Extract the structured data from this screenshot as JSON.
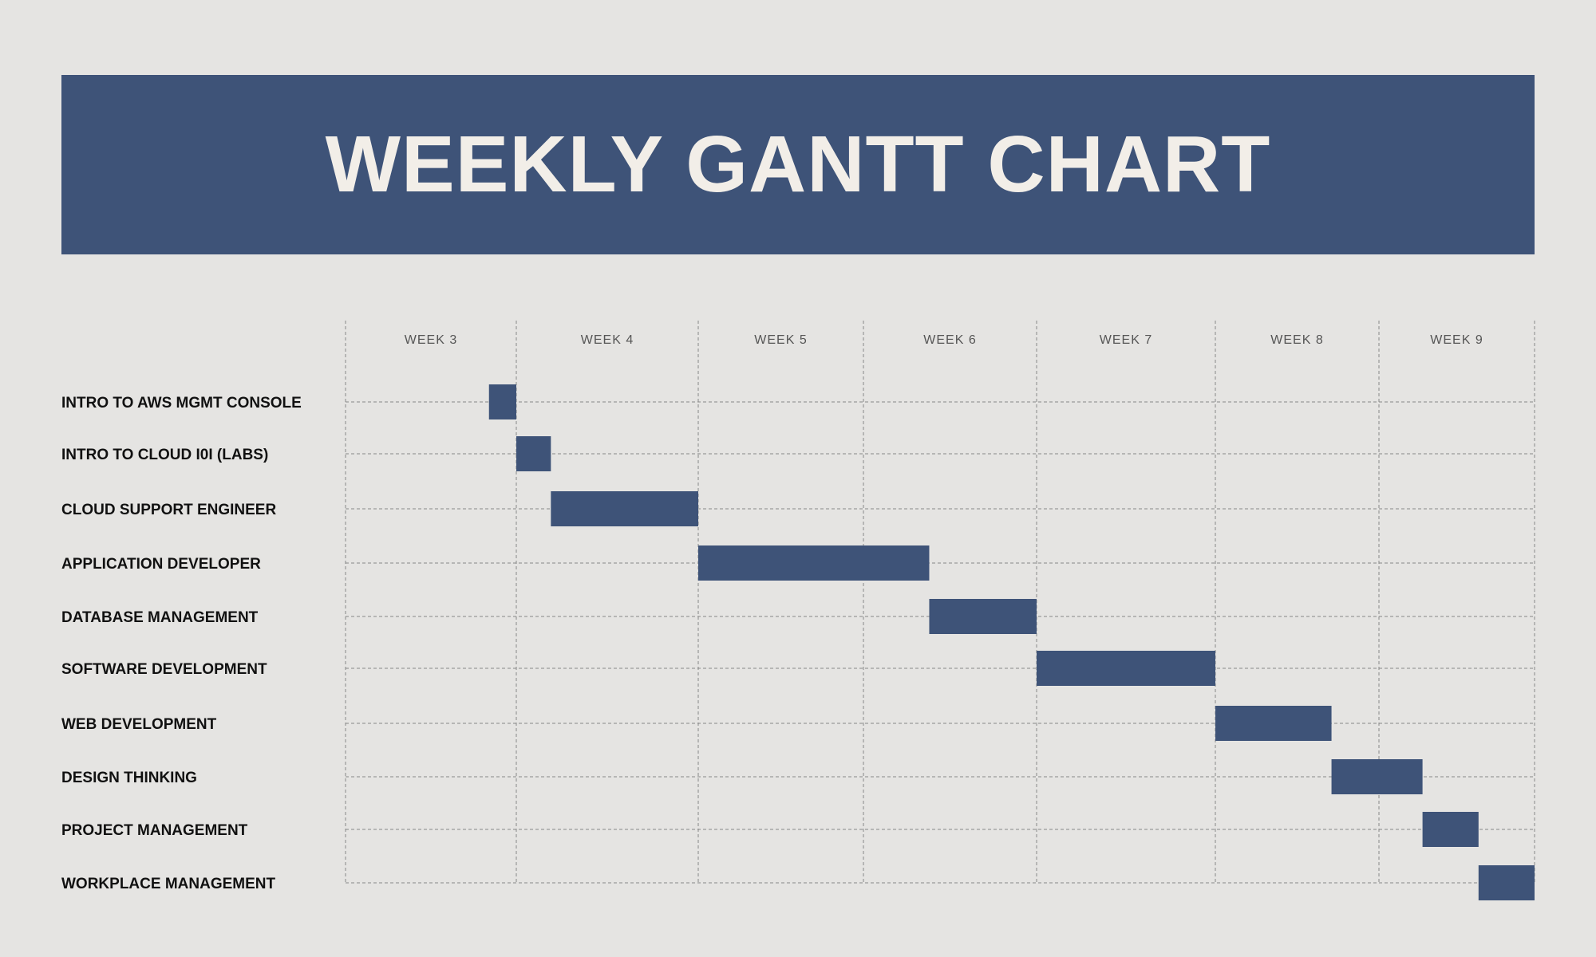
{
  "title": "WEEKLY GANTT CHART",
  "colors": {
    "background": "#e5e4e2",
    "accent": "#3e5378",
    "title_text": "#f2eee8",
    "grid": "#888888"
  },
  "chart_data": {
    "type": "gantt",
    "title": "WEEKLY GANTT CHART",
    "x_ticks": [
      "WEEK 3",
      "WEEK 4",
      "WEEK 5",
      "WEEK 6",
      "WEEK 7",
      "WEEK 8",
      "WEEK 9"
    ],
    "x_range": [
      3,
      10
    ],
    "grid": true,
    "tasks": [
      {
        "name": "INTRO TO AWS MGMT CONSOLE",
        "start": 3.84,
        "end": 4.0
      },
      {
        "name": "INTRO TO CLOUD I0I (LABS)",
        "start": 4.0,
        "end": 4.19
      },
      {
        "name": "CLOUD SUPPORT ENGINEER",
        "start": 4.19,
        "end": 5.0
      },
      {
        "name": "APPLICATION DEVELOPER",
        "start": 5.0,
        "end": 6.38
      },
      {
        "name": "DATABASE MANAGEMENT",
        "start": 6.38,
        "end": 7.0
      },
      {
        "name": "SOFTWARE DEVELOPMENT",
        "start": 7.0,
        "end": 8.0
      },
      {
        "name": "WEB DEVELOPMENT",
        "start": 8.0,
        "end": 8.71
      },
      {
        "name": "DESIGN THINKING",
        "start": 8.71,
        "end": 9.28
      },
      {
        "name": "PROJECT MANAGEMENT",
        "start": 9.28,
        "end": 9.64
      },
      {
        "name": "WORKPLACE MANAGEMENT",
        "start": 9.64,
        "end": 10.0
      }
    ]
  }
}
